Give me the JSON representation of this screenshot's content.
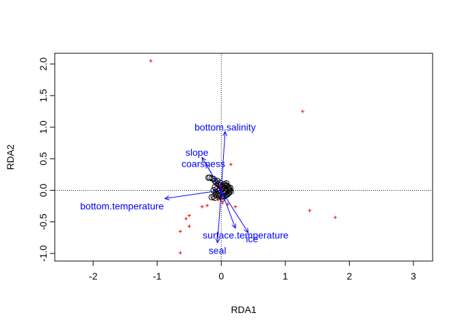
{
  "chart_data": {
    "type": "scatter",
    "title": "",
    "xlabel": "RDA1",
    "ylabel": "RDA2",
    "xlim": [
      -2.6,
      3.3
    ],
    "ylim": [
      -1.12,
      2.17
    ],
    "x_ticks": [
      -2,
      -1,
      0,
      1,
      2,
      3
    ],
    "y_ticks": [
      -1.0,
      -0.5,
      0.0,
      0.5,
      1.0,
      1.5,
      2.0
    ],
    "x_tick_labels": [
      "-2",
      "-1",
      "0",
      "1",
      "2",
      "3"
    ],
    "y_tick_labels": [
      "-1.0",
      "-0.5",
      "0.0",
      "0.5",
      "1.0",
      "1.5",
      "2.0"
    ],
    "reference_lines": {
      "x": 0,
      "y": 0,
      "style": "dotted"
    },
    "colors": {
      "site_scores": "#000000",
      "species_scores": "#ff0000",
      "biplot_arrows": "#0000ff"
    },
    "site_scores": [
      [
        -0.2,
        0.2
      ],
      [
        -0.18,
        0.2
      ],
      [
        -0.15,
        0.19
      ],
      [
        -0.12,
        0.18
      ],
      [
        -0.1,
        0.15
      ],
      [
        -0.08,
        0.12
      ],
      [
        -0.05,
        0.1
      ],
      [
        -0.03,
        0.08
      ],
      [
        -0.01,
        0.06
      ],
      [
        0.01,
        0.05
      ],
      [
        0.03,
        0.06
      ],
      [
        0.05,
        0.07
      ],
      [
        0.07,
        0.08
      ],
      [
        0.09,
        0.07
      ],
      [
        0.11,
        0.05
      ],
      [
        0.12,
        0.03
      ],
      [
        0.13,
        0.01
      ],
      [
        0.13,
        -0.01
      ],
      [
        0.12,
        -0.03
      ],
      [
        0.11,
        -0.05
      ],
      [
        0.09,
        -0.07
      ],
      [
        0.07,
        -0.08
      ],
      [
        0.05,
        -0.09
      ],
      [
        0.03,
        -0.1
      ],
      [
        0.0,
        -0.1
      ],
      [
        -0.03,
        -0.09
      ],
      [
        -0.06,
        -0.08
      ],
      [
        -0.09,
        -0.07
      ],
      [
        -0.12,
        -0.1
      ],
      [
        -0.15,
        -0.11
      ],
      [
        -0.08,
        -0.03
      ],
      [
        -0.05,
        -0.01
      ],
      [
        -0.02,
        0.01
      ],
      [
        0.02,
        0.02
      ],
      [
        0.06,
        0.03
      ],
      [
        0.1,
        0.01
      ],
      [
        0.08,
        -0.02
      ],
      [
        0.04,
        -0.05
      ],
      [
        -0.04,
        -0.05
      ],
      [
        -0.07,
        0.02
      ],
      [
        -0.1,
        0.05
      ],
      [
        -0.12,
        0.0
      ],
      [
        0.14,
        0.04
      ],
      [
        0.15,
        -0.02
      ],
      [
        0.05,
        0.1
      ],
      [
        -0.06,
        0.15
      ],
      [
        -0.02,
        0.12
      ],
      [
        0.02,
        -0.13
      ],
      [
        -0.1,
        -0.12
      ],
      [
        0.08,
        0.11
      ]
    ],
    "species_scores": [
      [
        -1.1,
        2.05
      ],
      [
        1.27,
        1.25
      ],
      [
        1.38,
        -0.32
      ],
      [
        1.78,
        -0.43
      ],
      [
        0.15,
        0.41
      ],
      [
        -0.3,
        -0.26
      ],
      [
        -0.22,
        -0.24
      ],
      [
        -0.5,
        -0.4
      ],
      [
        -0.55,
        -0.45
      ],
      [
        -0.5,
        -0.57
      ],
      [
        -0.64,
        -0.65
      ],
      [
        -0.64,
        -0.99
      ],
      [
        0.02,
        -0.2
      ],
      [
        0.22,
        -0.26
      ],
      [
        0.1,
        -0.22
      ],
      [
        -0.05,
        -0.15
      ],
      [
        0.0,
        0.02
      ],
      [
        -0.02,
        0.06
      ]
    ],
    "biplot": [
      {
        "label": "bottom.salinity",
        "x": 0.06,
        "y": 0.93,
        "label_x": 0.06,
        "label_y": 1.0
      },
      {
        "label": "slope",
        "x": -0.3,
        "y": 0.52,
        "label_x": -0.38,
        "label_y": 0.6
      },
      {
        "label": "coarsness",
        "x": -0.24,
        "y": 0.42,
        "label_x": -0.28,
        "label_y": 0.42
      },
      {
        "label": "bottom.temperature",
        "x": -0.88,
        "y": -0.13,
        "label_x": -1.55,
        "label_y": -0.25
      },
      {
        "label": "surface.temperature",
        "x": 0.22,
        "y": -0.6,
        "label_x": 0.38,
        "label_y": -0.71
      },
      {
        "label": "ice",
        "x": 0.42,
        "y": -0.67,
        "label_x": 0.48,
        "label_y": -0.77
      },
      {
        "label": "seal",
        "x": -0.06,
        "y": -0.83,
        "label_x": -0.06,
        "label_y": -0.95
      }
    ]
  }
}
